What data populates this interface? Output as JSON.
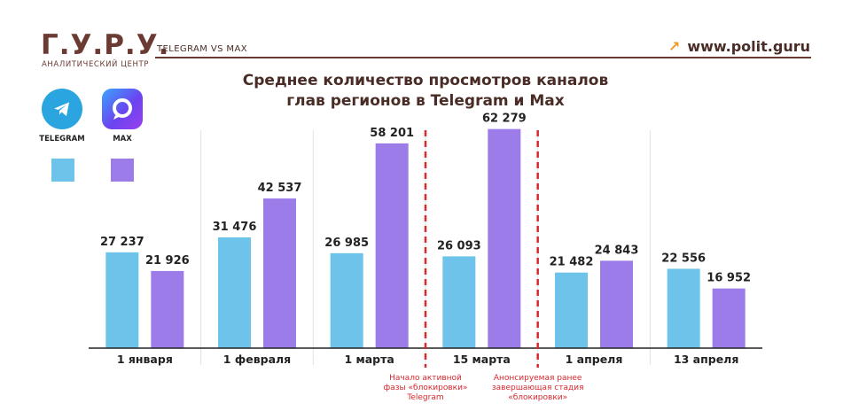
{
  "header": {
    "logo": "Г.У.Р.У.",
    "logo_sub": "АНАЛИТИЧЕСКИЙ ЦЕНТР",
    "tag": "TELEGRAM VS MAX",
    "site": "www.polit.guru",
    "brand_color": "#6b3a32",
    "arrow_color": "#f29a1f",
    "arrow_icon": "arrow-up-right-icon"
  },
  "legend": {
    "items": [
      {
        "label": "TELEGRAM",
        "color": "#6ec3ea",
        "icon": "telegram-icon"
      },
      {
        "label": "MAX",
        "color": "#9b7ce8",
        "icon": "max-icon"
      }
    ]
  },
  "chart_data": {
    "type": "bar",
    "title": "Среднее количество просмотров каналов глав регионов в Telegram и Max",
    "title_lines": [
      "Среднее количество просмотров каналов",
      "глав регионов в Telegram и Max"
    ],
    "categories": [
      "1 января",
      "1 февраля",
      "1 марта",
      "15 марта",
      "1 апреля",
      "13 апреля"
    ],
    "series": [
      {
        "name": "TELEGRAM",
        "color": "#6ec3ea",
        "values": [
          27237,
          31476,
          26985,
          26093,
          21482,
          22556
        ]
      },
      {
        "name": "MAX",
        "color": "#9b7ce8",
        "values": [
          21926,
          42537,
          58201,
          62279,
          24843,
          16952
        ]
      }
    ],
    "value_labels": [
      [
        "27 237",
        "31 476",
        "26 985",
        "26 093",
        "21 482",
        "22 556"
      ],
      [
        "21 926",
        "42 537",
        "58 201",
        "62 279",
        "24 843",
        "16 952"
      ]
    ],
    "ylim": [
      0,
      70000
    ],
    "grid": false,
    "legend_position": "left",
    "annotations": [
      {
        "after_category_index": 2,
        "color": "#d9282f",
        "lines": [
          "Начало активной",
          "фазы «блокировки»",
          "Telegram"
        ]
      },
      {
        "after_category_index": 3,
        "color": "#d9282f",
        "lines": [
          "Анонсируемая ранее",
          "завершающая стадия",
          "«блокировки»"
        ]
      }
    ]
  }
}
